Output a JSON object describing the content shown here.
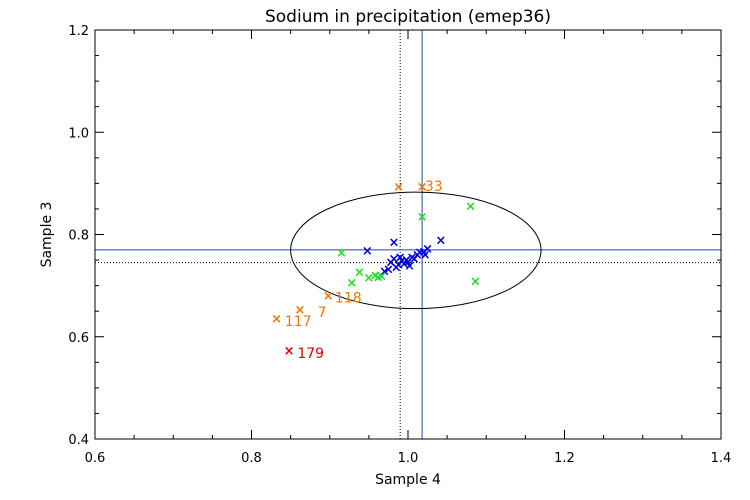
{
  "chart_data": {
    "type": "scatter",
    "title": "Sodium in precipitation (emep36)",
    "xlabel": "Sample 4",
    "ylabel": "Sample 3",
    "xlim": [
      0.6,
      1.4
    ],
    "ylim": [
      0.4,
      1.2
    ],
    "xticks": [
      0.6,
      0.8,
      1.0,
      1.2,
      1.4
    ],
    "xtick_labels": [
      "0.6",
      "0.8",
      "1.0",
      "1.2",
      "1.4"
    ],
    "yticks": [
      0.4,
      0.6,
      0.8,
      1.0,
      1.2
    ],
    "ytick_labels": [
      "0.4",
      "0.6",
      "0.8",
      "1.0",
      "1.2"
    ],
    "marker": "×",
    "colors": {
      "blue": "#0000dd",
      "green": "#22dd22",
      "orange": "#ee7700",
      "red": "#dd0000",
      "ref_line": "#2244aa",
      "ellipse": "#000000"
    },
    "reference_lines": {
      "solid": {
        "x": 1.018,
        "y": 0.77
      },
      "dotted": {
        "x": 0.99,
        "y": 0.745
      }
    },
    "ellipse": {
      "cx": 1.01,
      "cy": 0.769,
      "rx": 0.16,
      "ry": 0.114
    },
    "series": [
      {
        "name": "blue",
        "color": "blue",
        "points": [
          [
            0.948,
            0.768
          ],
          [
            0.982,
            0.784
          ],
          [
            1.042,
            0.788
          ],
          [
            1.025,
            0.772
          ],
          [
            1.02,
            0.766
          ],
          [
            1.022,
            0.76
          ],
          [
            0.975,
            0.732
          ],
          [
            0.978,
            0.745
          ],
          [
            0.982,
            0.752
          ],
          [
            0.988,
            0.74
          ],
          [
            0.992,
            0.748
          ],
          [
            0.995,
            0.742
          ],
          [
            0.998,
            0.75
          ],
          [
            1.0,
            0.745
          ],
          [
            1.005,
            0.755
          ],
          [
            1.008,
            0.752
          ],
          [
            1.012,
            0.76
          ],
          [
            1.015,
            0.765
          ],
          [
            0.985,
            0.735
          ],
          [
            0.97,
            0.728
          ],
          [
            1.002,
            0.738
          ],
          [
            0.99,
            0.755
          ]
        ]
      },
      {
        "name": "green",
        "color": "green",
        "points": [
          [
            1.08,
            0.855
          ],
          [
            1.018,
            0.834
          ],
          [
            0.915,
            0.764
          ],
          [
            0.938,
            0.726
          ],
          [
            0.95,
            0.715
          ],
          [
            0.958,
            0.72
          ],
          [
            0.962,
            0.716
          ],
          [
            0.966,
            0.718
          ],
          [
            0.928,
            0.705
          ],
          [
            1.086,
            0.708
          ]
        ]
      },
      {
        "name": "orange",
        "color": "orange",
        "points": [
          [
            0.988,
            0.893
          ],
          [
            1.018,
            0.893
          ],
          [
            0.898,
            0.68
          ],
          [
            0.862,
            0.652
          ],
          [
            0.832,
            0.635
          ]
        ]
      },
      {
        "name": "red",
        "color": "red",
        "points": [
          [
            0.848,
            0.572
          ]
        ]
      }
    ],
    "annotations": [
      {
        "text": "33",
        "x": 1.019,
        "y": 0.895,
        "color": "orange"
      },
      {
        "text": "118",
        "x": 0.904,
        "y": 0.677,
        "color": "orange"
      },
      {
        "text": "7",
        "x": 0.882,
        "y": 0.648,
        "color": "orange"
      },
      {
        "text": "117",
        "x": 0.84,
        "y": 0.631,
        "color": "orange"
      },
      {
        "text": "179",
        "x": 0.856,
        "y": 0.568,
        "color": "red"
      }
    ]
  }
}
